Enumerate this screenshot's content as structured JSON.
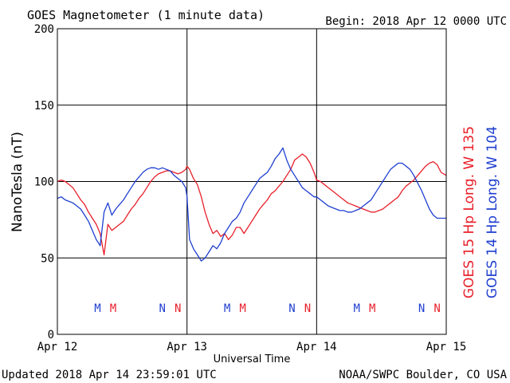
{
  "header": {
    "title": "GOES Magnetometer (1 minute data)",
    "begin": "Begin:  2018 Apr 12 0000 UTC"
  },
  "footer": {
    "updated": "Updated 2018 Apr 14 23:59:01 UTC",
    "credit": "NOAA/SWPC Boulder, CO USA"
  },
  "colors": {
    "goes15": "#e8202a",
    "goes14": "#1f3fd0",
    "grid": "#000000",
    "background": "#ffffff"
  },
  "chart_data": {
    "type": "line",
    "title": "GOES Magnetometer (1 minute data)",
    "xlabel": "Universal Time",
    "ylabel": "NanoTesla (nT)",
    "ylim": [
      0,
      200
    ],
    "yticks": [
      0,
      50,
      100,
      150,
      200
    ],
    "xlim_days": [
      0,
      3
    ],
    "xtick_labels": [
      "Apr 12",
      "Apr 13",
      "Apr 14",
      "Apr 15"
    ],
    "grid": true,
    "legend_position": "right-vertical",
    "legend": [
      {
        "text": "GOES 15 Hp  Long. W 135",
        "color": "#e8202a"
      },
      {
        "text": "GOES 14 Hp  Long. W 104",
        "color": "#1f3fd0"
      }
    ],
    "markers": [
      {
        "label": "M",
        "day": 0.31,
        "series": "GOES 14 Hp"
      },
      {
        "label": "M",
        "day": 0.43,
        "series": "GOES 15 Hp"
      },
      {
        "label": "N",
        "day": 0.81,
        "series": "GOES 14 Hp"
      },
      {
        "label": "N",
        "day": 0.93,
        "series": "GOES 15 Hp"
      },
      {
        "label": "M",
        "day": 1.31,
        "series": "GOES 14 Hp"
      },
      {
        "label": "M",
        "day": 1.43,
        "series": "GOES 15 Hp"
      },
      {
        "label": "N",
        "day": 1.81,
        "series": "GOES 14 Hp"
      },
      {
        "label": "N",
        "day": 1.93,
        "series": "GOES 15 Hp"
      },
      {
        "label": "M",
        "day": 2.31,
        "series": "GOES 14 Hp"
      },
      {
        "label": "M",
        "day": 2.43,
        "series": "GOES 15 Hp"
      },
      {
        "label": "N",
        "day": 2.81,
        "series": "GOES 14 Hp"
      },
      {
        "label": "N",
        "day": 2.93,
        "series": "GOES 15 Hp"
      }
    ],
    "series": [
      {
        "name": "GOES 15 Hp",
        "color": "#e8202a",
        "x": [
          0,
          0.03,
          0.06,
          0.09,
          0.12,
          0.15,
          0.18,
          0.21,
          0.24,
          0.27,
          0.3,
          0.33,
          0.36,
          0.39,
          0.42,
          0.45,
          0.48,
          0.51,
          0.54,
          0.57,
          0.6,
          0.63,
          0.66,
          0.69,
          0.72,
          0.75,
          0.78,
          0.81,
          0.84,
          0.87,
          0.9,
          0.93,
          0.96,
          0.99,
          1.0,
          1.02,
          1.05,
          1.08,
          1.11,
          1.14,
          1.17,
          1.2,
          1.23,
          1.26,
          1.29,
          1.32,
          1.35,
          1.38,
          1.41,
          1.44,
          1.47,
          1.5,
          1.53,
          1.56,
          1.59,
          1.62,
          1.65,
          1.68,
          1.71,
          1.74,
          1.77,
          1.8,
          1.83,
          1.86,
          1.89,
          1.92,
          1.95,
          1.98,
          2.0,
          2.03,
          2.06,
          2.09,
          2.12,
          2.15,
          2.18,
          2.21,
          2.24,
          2.27,
          2.3,
          2.33,
          2.36,
          2.39,
          2.42,
          2.45,
          2.48,
          2.51,
          2.54,
          2.57,
          2.6,
          2.63,
          2.66,
          2.69,
          2.72,
          2.75,
          2.78,
          2.81,
          2.84,
          2.87,
          2.9,
          2.93,
          2.96,
          3.0
        ],
        "values": [
          100,
          101,
          100,
          98,
          96,
          92,
          88,
          85,
          80,
          76,
          72,
          66,
          52,
          72,
          68,
          70,
          72,
          74,
          78,
          82,
          85,
          89,
          92,
          96,
          100,
          103,
          105,
          106,
          107,
          107,
          106,
          105,
          106,
          108,
          110,
          108,
          102,
          98,
          90,
          80,
          72,
          66,
          68,
          64,
          66,
          62,
          65,
          70,
          70,
          66,
          70,
          74,
          78,
          82,
          85,
          88,
          92,
          94,
          97,
          100,
          104,
          108,
          114,
          116,
          118,
          116,
          112,
          106,
          101,
          100,
          98,
          96,
          94,
          92,
          90,
          88,
          86,
          85,
          84,
          83,
          82,
          81,
          80,
          80,
          81,
          82,
          84,
          86,
          88,
          90,
          94,
          97,
          99,
          101,
          104,
          107,
          110,
          112,
          113,
          111,
          106,
          104
        ]
      },
      {
        "name": "GOES 14 Hp",
        "color": "#1f3fd0",
        "x": [
          0,
          0.03,
          0.06,
          0.09,
          0.12,
          0.15,
          0.18,
          0.21,
          0.24,
          0.27,
          0.3,
          0.33,
          0.36,
          0.39,
          0.42,
          0.45,
          0.48,
          0.51,
          0.54,
          0.57,
          0.6,
          0.63,
          0.66,
          0.69,
          0.72,
          0.75,
          0.78,
          0.81,
          0.84,
          0.87,
          0.9,
          0.93,
          0.96,
          0.99,
          1.0,
          1.02,
          1.05,
          1.08,
          1.11,
          1.14,
          1.17,
          1.2,
          1.23,
          1.26,
          1.29,
          1.32,
          1.35,
          1.38,
          1.41,
          1.44,
          1.47,
          1.5,
          1.53,
          1.56,
          1.59,
          1.62,
          1.65,
          1.68,
          1.71,
          1.74,
          1.77,
          1.8,
          1.83,
          1.86,
          1.89,
          1.92,
          1.95,
          1.98,
          2.0,
          2.03,
          2.06,
          2.09,
          2.12,
          2.15,
          2.18,
          2.21,
          2.24,
          2.27,
          2.3,
          2.33,
          2.36,
          2.39,
          2.42,
          2.45,
          2.48,
          2.51,
          2.54,
          2.57,
          2.6,
          2.63,
          2.66,
          2.69,
          2.72,
          2.75,
          2.78,
          2.81,
          2.84,
          2.87,
          2.9,
          2.93,
          2.96,
          3.0
        ],
        "values": [
          89,
          90,
          88,
          87,
          86,
          84,
          82,
          78,
          74,
          68,
          62,
          58,
          80,
          86,
          78,
          82,
          85,
          88,
          92,
          96,
          100,
          103,
          106,
          108,
          109,
          109,
          108,
          109,
          108,
          107,
          104,
          102,
          100,
          96,
          90,
          62,
          56,
          52,
          48,
          50,
          54,
          58,
          56,
          60,
          66,
          70,
          74,
          76,
          80,
          86,
          90,
          94,
          98,
          102,
          104,
          106,
          110,
          115,
          118,
          122,
          114,
          108,
          104,
          100,
          96,
          94,
          92,
          90,
          90,
          88,
          86,
          84,
          83,
          82,
          81,
          81,
          80,
          80,
          81,
          82,
          84,
          86,
          88,
          92,
          96,
          100,
          104,
          108,
          110,
          112,
          112,
          110,
          108,
          104,
          99,
          94,
          88,
          82,
          78,
          76,
          76,
          76
        ]
      }
    ]
  }
}
